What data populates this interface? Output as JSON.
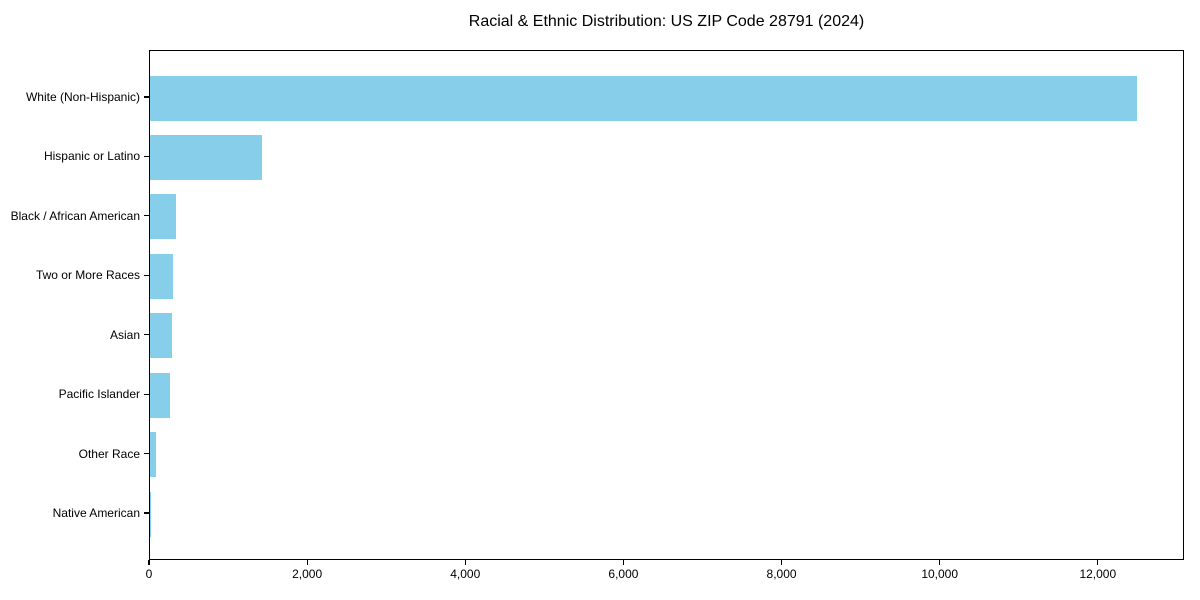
{
  "chart_data": {
    "type": "bar",
    "orientation": "horizontal",
    "title": "Racial & Ethnic Distribution: US ZIP Code 28791 (2024)",
    "categories": [
      "White (Non-Hispanic)",
      "Hispanic or Latino",
      "Black / African American",
      "Two or More Races",
      "Asian",
      "Pacific Islander",
      "Other Race",
      "Native American"
    ],
    "values": [
      12480,
      1420,
      330,
      290,
      280,
      250,
      75,
      10
    ],
    "xlabel": "",
    "ylabel": "",
    "xlim": [
      0,
      13090
    ],
    "xticks": [
      0,
      2000,
      4000,
      6000,
      8000,
      10000,
      12000
    ],
    "xtick_labels": [
      "0",
      "2,000",
      "4,000",
      "6,000",
      "8,000",
      "10,000",
      "12,000"
    ],
    "bar_color": "#87CEEB",
    "background_color": "#ffffff",
    "spine_color": "#000000",
    "grid": false,
    "legend": null
  }
}
